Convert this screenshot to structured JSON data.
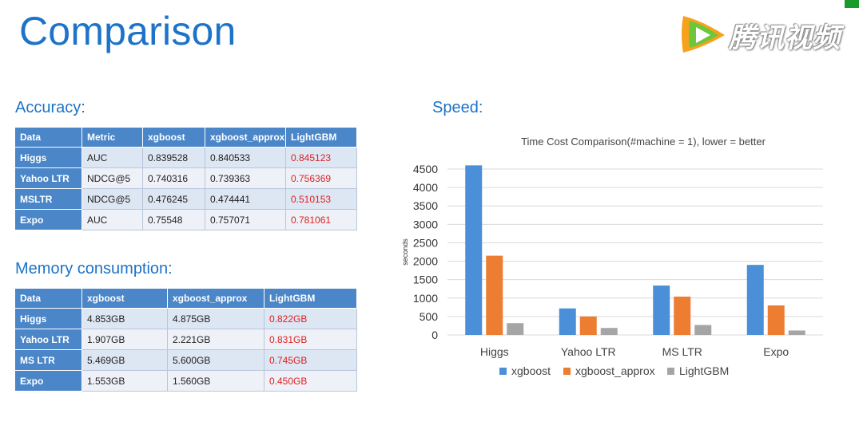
{
  "slide": {
    "title": "Comparison",
    "logo_text": "腾讯视频"
  },
  "accuracy": {
    "title": "Accuracy:",
    "headers": [
      "Data",
      "Metric",
      "xgboost",
      "xgboost_approx",
      "LightGBM"
    ],
    "rows": [
      [
        "Higgs",
        "AUC",
        "0.839528",
        "0.840533",
        "0.845123"
      ],
      [
        "Yahoo LTR",
        "NDCG@5",
        "0.740316",
        "0.739363",
        "0.756369"
      ],
      [
        "MSLTR",
        "NDCG@5",
        "0.476245",
        "0.474441",
        "0.510153"
      ],
      [
        "Expo",
        "AUC",
        "0.75548",
        "0.757071",
        "0.781061"
      ]
    ]
  },
  "memory": {
    "title": "Memory consumption:",
    "headers": [
      "Data",
      "xgboost",
      "xgboost_approx",
      "LightGBM"
    ],
    "rows": [
      [
        "Higgs",
        "4.853GB",
        "4.875GB",
        "0.822GB"
      ],
      [
        "Yahoo LTR",
        "1.907GB",
        "2.221GB",
        "0.831GB"
      ],
      [
        "MS LTR",
        "5.469GB",
        "5.600GB",
        "0.745GB"
      ],
      [
        "Expo",
        "1.553GB",
        "1.560GB",
        "0.450GB"
      ]
    ]
  },
  "speed": {
    "title": "Speed:"
  },
  "colors": {
    "accent": "#1d73c9",
    "table_header": "#4a86c8",
    "best_value": "#e02020"
  },
  "chart_data": {
    "type": "bar",
    "title": "Time Cost Comparison(#machine = 1), lower = better",
    "ylabel": "seconds",
    "xlabel": "",
    "categories": [
      "Higgs",
      "Yahoo LTR",
      "MS LTR",
      "Expo"
    ],
    "series": [
      {
        "name": "xgboost",
        "values": [
          4600,
          720,
          1340,
          1900
        ],
        "color": "#4a8fd8"
      },
      {
        "name": "xgboost_approx",
        "values": [
          2150,
          500,
          1040,
          800
        ],
        "color": "#ed7d31"
      },
      {
        "name": "LightGBM",
        "values": [
          320,
          190,
          270,
          120
        ],
        "color": "#a5a5a5"
      }
    ],
    "ylim": [
      0,
      4500
    ],
    "yticks": [
      0,
      500,
      1000,
      1500,
      2000,
      2500,
      3000,
      3500,
      4000,
      4500
    ],
    "grid": true,
    "legend": "bottom"
  }
}
